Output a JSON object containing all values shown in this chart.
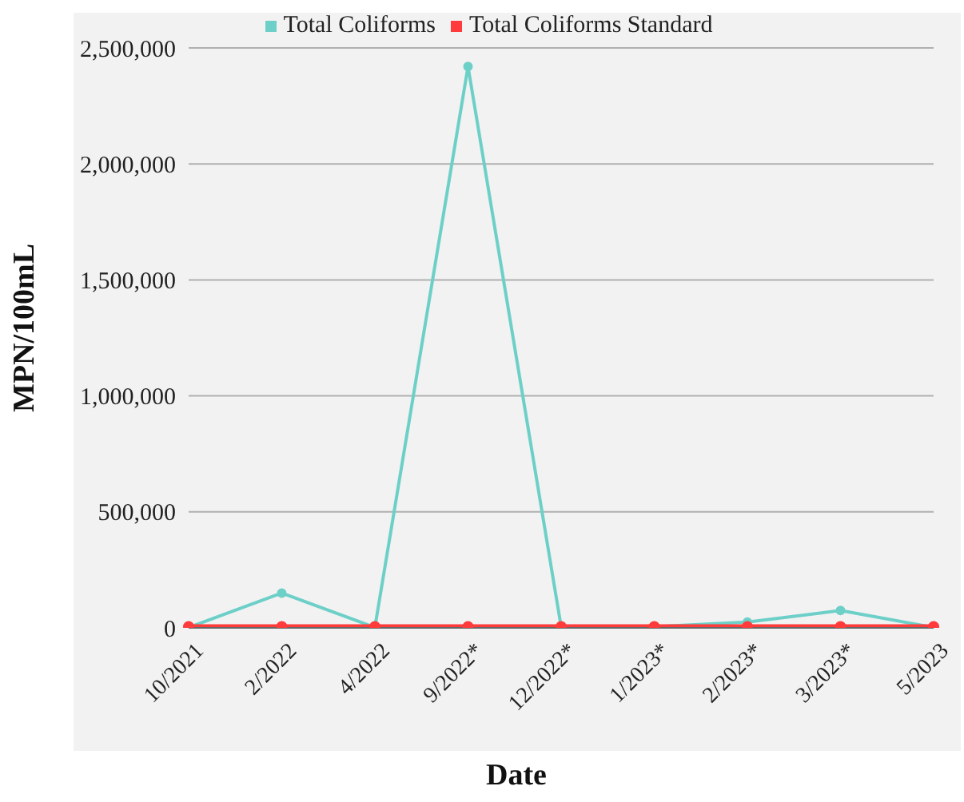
{
  "chart_data": {
    "type": "line",
    "xlabel": "Date",
    "ylabel": "MPN/100mL",
    "categories": [
      "10/2021",
      "2/2022",
      "4/2022",
      "9/2022*",
      "12/2022*",
      "1/2023*",
      "2/2023*",
      "3/2023*",
      "5/2023"
    ],
    "series": [
      {
        "name": "Total Coliforms",
        "color": "#6dd0c8",
        "values": [
          2000,
          150000,
          2000,
          2420000,
          5000,
          5000,
          25000,
          75000,
          2000
        ]
      },
      {
        "name": "Total Coliforms Standard",
        "color": "#ff3b3b",
        "values": [
          5000,
          5000,
          5000,
          5000,
          5000,
          5000,
          5000,
          5000,
          5000
        ]
      }
    ],
    "ylim": [
      0,
      2500000
    ],
    "yticks": [
      0,
      {
        "value": 500000,
        "label": "500,000"
      },
      {
        "value": 1000000,
        "label": "1,000,000"
      },
      {
        "value": 1500000,
        "label": "1,500,000"
      },
      {
        "value": 2000000,
        "label": "2,000,000"
      },
      {
        "value": 2500000,
        "label": "2,500,000"
      }
    ],
    "grid": "y",
    "legend": "top",
    "marker": "circle",
    "line_style": "solid"
  }
}
